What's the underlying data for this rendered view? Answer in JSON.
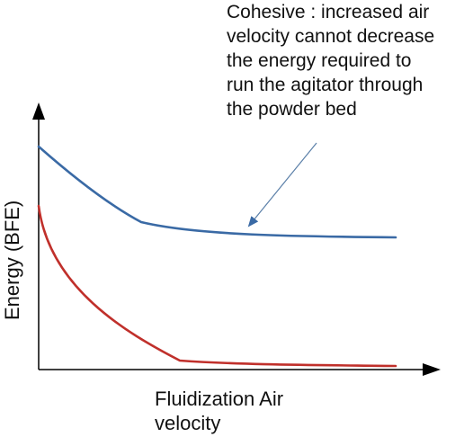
{
  "annotation": {
    "lines": [
      "Cohesive : increased air",
      "velocity cannot decrease",
      "the energy required to",
      "run the agitator through",
      "the powder bed"
    ]
  },
  "axes": {
    "x_label_lines": [
      "Fluidization Air",
      "velocity"
    ],
    "y_label": "Energy (BFE)"
  },
  "curves": [
    {
      "id": "upper-curve",
      "color": "#3a6aa5"
    },
    {
      "id": "lower-curve",
      "color": "#c0302b"
    }
  ],
  "colors": {
    "axis": "#000000",
    "arrow": "#5a7fa8",
    "text": "#111111"
  }
}
